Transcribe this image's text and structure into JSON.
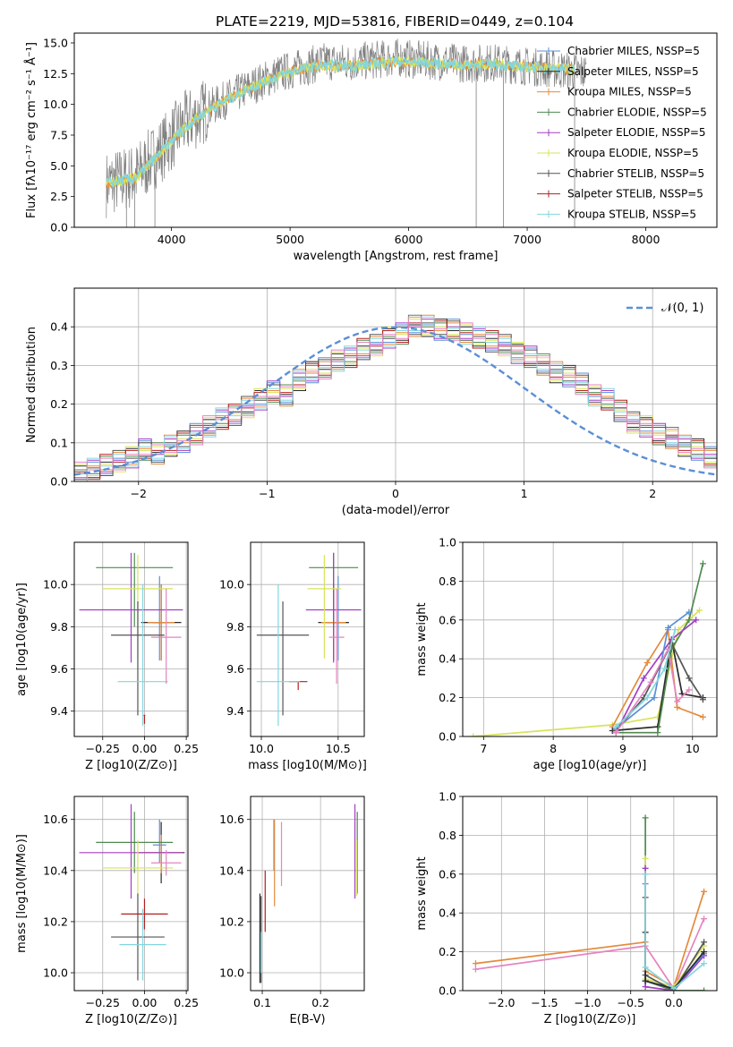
{
  "figure_title": "PLATE=2219, MJD=53816, FIBERID=0449, z=0.104",
  "palette": {
    "Chabrier MILES": "#5b8fd6",
    "Salpeter MILES": "#2a2a2a",
    "Kroupa MILES": "#e38b3c",
    "Chabrier ELODIE": "#4f8a4f",
    "Salpeter ELODIE": "#a33fc4",
    "Kroupa ELODIE": "#d8e35a",
    "Chabrier STELIB": "#555555",
    "Salpeter STELIB": "#b22020",
    "Kroupa STELIB": "#83d6de",
    "extra pink": "#e584c0",
    "normal curve": "#5b8fd6"
  },
  "chart_data": [
    {
      "id": "spectrum",
      "type": "line",
      "title": "PLATE=2219, MJD=53816, FIBERID=0449, z=0.104",
      "xlabel": "wavelength [Angstrom, rest frame]",
      "ylabel": "Flux [fλ10⁻¹⁷ erg cm⁻² s⁻¹ Å⁻¹]",
      "xlim": [
        3180,
        8600
      ],
      "ylim": [
        0,
        15.8
      ],
      "xticks": [
        "4000",
        "5000",
        "6000",
        "7000",
        "8000"
      ],
      "yticks": [
        "0.0",
        "2.5",
        "5.0",
        "7.5",
        "10.0",
        "12.5",
        "15.0"
      ],
      "grid": false,
      "legend_position": "right",
      "legend": [
        "Chabrier MILES, N_SSP=5",
        "Salpeter MILES, N_SSP=5",
        "Kroupa MILES, N_SSP=5",
        "Chabrier ELODIE, N_SSP=5",
        "Salpeter ELODIE, N_SSP=5",
        "Kroupa ELODIE, N_SSP=5",
        "Chabrier STELIB, N_SSP=5",
        "Salpeter STELIB, N_SSP=5",
        "Kroupa STELIB, N_SSP=5"
      ],
      "observed_envelope": {
        "x": [
          3450,
          3700,
          3900,
          4100,
          4300,
          4500,
          4700,
          4900,
          5100,
          5300,
          5500,
          5700,
          5900,
          6100,
          6300,
          6500,
          6700,
          6900,
          7100,
          7300,
          7500
        ],
        "y": [
          3.5,
          4.2,
          6.2,
          8.3,
          9.6,
          10.6,
          11.6,
          12.5,
          13.0,
          13.5,
          13.4,
          13.6,
          13.8,
          13.6,
          13.5,
          13.3,
          13.4,
          13.2,
          13.0,
          12.8,
          12.6
        ]
      },
      "model_fit": {
        "x": [
          3450,
          3700,
          3900,
          4100,
          4300,
          4500,
          4700,
          4900,
          5100,
          5300,
          5500,
          5700,
          5900,
          6100,
          6300,
          6500,
          6700,
          6900,
          7100,
          7300,
          7400
        ],
        "y": [
          3.6,
          4.0,
          6.0,
          8.0,
          9.5,
          10.5,
          11.5,
          12.3,
          12.9,
          13.2,
          13.1,
          13.3,
          13.5,
          13.4,
          13.3,
          13.2,
          13.3,
          13.1,
          13.0,
          12.9,
          12.8
        ]
      }
    },
    {
      "id": "residual_histogram",
      "type": "line",
      "xlabel": "(data-model)/error",
      "ylabel": "Normed distribution",
      "xlim": [
        -2.5,
        2.5
      ],
      "ylim": [
        0,
        0.5
      ],
      "xticks": [
        "−2",
        "−1",
        "0",
        "1",
        "2"
      ],
      "yticks": [
        "0.0",
        "0.1",
        "0.2",
        "0.3",
        "0.4"
      ],
      "grid": true,
      "legend_position": "top-right",
      "legend": [
        "𝒩(0, 1)"
      ],
      "bin_width": 0.1,
      "bin_start": -2.5,
      "hist_reference": [
        0.02,
        0.03,
        0.04,
        0.05,
        0.06,
        0.08,
        0.07,
        0.09,
        0.1,
        0.12,
        0.14,
        0.16,
        0.17,
        0.19,
        0.21,
        0.23,
        0.22,
        0.26,
        0.28,
        0.29,
        0.31,
        0.32,
        0.34,
        0.35,
        0.37,
        0.38,
        0.4,
        0.4,
        0.39,
        0.39,
        0.38,
        0.37,
        0.36,
        0.35,
        0.33,
        0.32,
        0.3,
        0.28,
        0.27,
        0.25,
        0.22,
        0.21,
        0.18,
        0.15,
        0.14,
        0.12,
        0.11,
        0.09,
        0.08,
        0.06,
        0.05
      ],
      "hist_offsets": [
        0.0,
        0.02,
        -0.02,
        0.01,
        -0.01,
        0.025,
        -0.015,
        0.005,
        -0.025,
        0.03
      ],
      "normal_curve": "N(0,1) density"
    },
    {
      "id": "age_vs_Z",
      "type": "scatter",
      "xlabel": "Z [log10(Z/Z⊙)]",
      "ylabel": "age  [log10(age/yr)]",
      "xlim": [
        -0.42,
        0.26
      ],
      "ylim": [
        9.28,
        10.2
      ],
      "xticks": [
        "−0.25",
        "0.00",
        "0.25"
      ],
      "yticks": [
        "9.4",
        "9.6",
        "9.8",
        "10.0"
      ],
      "grid": true,
      "points": [
        {
          "x": 0.09,
          "y": 9.82,
          "xerr": 0.04,
          "yerr": [
            0.18,
            0.22
          ],
          "color": "#5b8fd6"
        },
        {
          "x": 0.1,
          "y": 9.82,
          "xerr": 0.12,
          "yerr": [
            0.18,
            0.18
          ],
          "color": "#2a2a2a"
        },
        {
          "x": 0.1,
          "y": 9.82,
          "xerr": 0.08,
          "yerr": [
            0.18,
            0.18
          ],
          "color": "#e38b3c"
        },
        {
          "x": -0.06,
          "y": 10.08,
          "xerr": 0.23,
          "yerr": [
            0.28,
            0.07
          ],
          "color": "#4f8a4f"
        },
        {
          "x": -0.08,
          "y": 9.88,
          "xerr": 0.31,
          "yerr": [
            0.25,
            0.27
          ],
          "color": "#a33fc4"
        },
        {
          "x": -0.04,
          "y": 9.98,
          "xerr": 0.21,
          "yerr": [
            0.33,
            0.16
          ],
          "color": "#d8e35a"
        },
        {
          "x": -0.04,
          "y": 9.76,
          "xerr": 0.16,
          "yerr": [
            0.38,
            0.16
          ],
          "color": "#555555"
        },
        {
          "x": 0.0,
          "y": 9.38,
          "xerr": 0.005,
          "yerr": [
            0.04,
            0.0
          ],
          "color": "#b22020"
        },
        {
          "x": -0.01,
          "y": 9.54,
          "xerr": 0.15,
          "yerr": [
            0.21,
            0.46
          ],
          "color": "#83d6de"
        },
        {
          "x": 0.13,
          "y": 9.75,
          "xerr": 0.09,
          "yerr": [
            0.22,
            0.23
          ],
          "color": "#e584c0"
        }
      ]
    },
    {
      "id": "age_vs_mass",
      "type": "scatter",
      "xlabel": "mass [log10(M/M⊙)]",
      "ylabel": "",
      "xlim": [
        9.93,
        10.67
      ],
      "ylim": [
        9.28,
        10.2
      ],
      "xticks": [
        "10.0",
        "10.5"
      ],
      "yticks": [
        "9.4",
        "9.6",
        "9.8",
        "10.0"
      ],
      "grid": true,
      "points": [
        {
          "x": 10.5,
          "y": 9.82,
          "xerr": 0.07,
          "yerr": [
            0.18,
            0.22
          ],
          "color": "#5b8fd6"
        },
        {
          "x": 10.47,
          "y": 9.82,
          "xerr": 0.1,
          "yerr": [
            0.18,
            0.18
          ],
          "color": "#2a2a2a"
        },
        {
          "x": 10.47,
          "y": 9.82,
          "xerr": 0.08,
          "yerr": [
            0.18,
            0.18
          ],
          "color": "#e38b3c"
        },
        {
          "x": 10.47,
          "y": 10.08,
          "xerr": 0.16,
          "yerr": [
            0.28,
            0.07
          ],
          "color": "#4f8a4f"
        },
        {
          "x": 10.47,
          "y": 9.88,
          "xerr": 0.18,
          "yerr": [
            0.25,
            0.27
          ],
          "color": "#a33fc4"
        },
        {
          "x": 10.41,
          "y": 9.98,
          "xerr": 0.11,
          "yerr": [
            0.33,
            0.16
          ],
          "color": "#d8e35a"
        },
        {
          "x": 10.14,
          "y": 9.76,
          "xerr": 0.17,
          "yerr": [
            0.38,
            0.16
          ],
          "color": "#555555"
        },
        {
          "x": 10.24,
          "y": 9.54,
          "xerr": 0.06,
          "yerr": [
            0.04,
            0.0
          ],
          "color": "#b22020"
        },
        {
          "x": 10.11,
          "y": 9.54,
          "xerr": 0.14,
          "yerr": [
            0.21,
            0.46
          ],
          "color": "#83d6de"
        },
        {
          "x": 10.49,
          "y": 9.75,
          "xerr": 0.05,
          "yerr": [
            0.22,
            0.23
          ],
          "color": "#e584c0"
        }
      ]
    },
    {
      "id": "mass_weight_vs_age",
      "type": "line",
      "xlabel": "age  [log10(age/yr)]",
      "ylabel": "mass weight",
      "xlim": [
        6.7,
        10.35
      ],
      "ylim": [
        0,
        1.0
      ],
      "xticks": [
        "7",
        "8",
        "9",
        "10"
      ],
      "yticks": [
        "0.0",
        "0.2",
        "0.4",
        "0.6",
        "0.8",
        "1.0"
      ],
      "grid": true,
      "series": [
        {
          "x": [
            6.85,
            8.85,
            9.5,
            9.8,
            10.1
          ],
          "y": [
            0.0,
            0.06,
            0.1,
            0.55,
            0.65
          ],
          "color": "#d8e35a"
        },
        {
          "x": [
            8.85,
            9.35,
            9.65,
            9.78,
            10.15
          ],
          "y": [
            0.05,
            0.38,
            0.55,
            0.15,
            0.1
          ],
          "color": "#e38b3c"
        },
        {
          "x": [
            8.85,
            9.5,
            9.7,
            9.85,
            10.15
          ],
          "y": [
            0.03,
            0.05,
            0.5,
            0.22,
            0.2
          ],
          "color": "#2a2a2a"
        },
        {
          "x": [
            8.9,
            9.5,
            9.7,
            9.95,
            10.15
          ],
          "y": [
            0.02,
            0.02,
            0.45,
            0.6,
            0.89
          ],
          "color": "#4f8a4f"
        },
        {
          "x": [
            8.9,
            9.3,
            9.7,
            10.05
          ],
          "y": [
            0.02,
            0.3,
            0.5,
            0.6
          ],
          "color": "#a33fc4"
        },
        {
          "x": [
            8.9,
            9.45,
            9.65,
            9.95
          ],
          "y": [
            0.04,
            0.2,
            0.56,
            0.64
          ],
          "color": "#5b8fd6"
        },
        {
          "x": [
            8.9,
            9.3,
            9.7,
            9.95,
            10.15
          ],
          "y": [
            0.03,
            0.2,
            0.48,
            0.3,
            0.19
          ],
          "color": "#555555"
        },
        {
          "x": [
            8.9,
            9.4,
            9.65,
            9.78,
            9.95
          ],
          "y": [
            0.02,
            0.28,
            0.45,
            0.18,
            0.24
          ],
          "color": "#e584c0"
        },
        {
          "x": [
            8.9,
            9.35,
            9.6,
            9.75
          ],
          "y": [
            0.05,
            0.2,
            0.35,
            0.55
          ],
          "color": "#83d6de"
        }
      ]
    },
    {
      "id": "mass_vs_Z",
      "type": "scatter",
      "xlabel": "Z [log10(Z/Z⊙)]",
      "ylabel": "mass [log10(M/M⊙)]",
      "xlim": [
        -0.42,
        0.26
      ],
      "ylim": [
        9.93,
        10.69
      ],
      "xticks": [
        "−0.25",
        "0.00",
        "0.25"
      ],
      "yticks": [
        "10.0",
        "10.2",
        "10.4",
        "10.6"
      ],
      "grid": true,
      "points": [
        {
          "x": 0.09,
          "y": 10.5,
          "xerr": 0.04,
          "yerr": [
            0.07,
            0.1
          ],
          "color": "#5b8fd6"
        },
        {
          "x": 0.1,
          "y": 10.47,
          "xerr": 0.14,
          "yerr": [
            0.12,
            0.12
          ],
          "color": "#2a2a2a"
        },
        {
          "x": 0.1,
          "y": 10.47,
          "xerr": 0.13,
          "yerr": [
            0.08,
            0.07
          ],
          "color": "#e38b3c"
        },
        {
          "x": -0.06,
          "y": 10.51,
          "xerr": 0.23,
          "yerr": [
            0.12,
            0.12
          ],
          "color": "#4f8a4f"
        },
        {
          "x": -0.08,
          "y": 10.47,
          "xerr": 0.31,
          "yerr": [
            0.18,
            0.19
          ],
          "color": "#a33fc4"
        },
        {
          "x": -0.04,
          "y": 10.41,
          "xerr": 0.21,
          "yerr": [
            0.11,
            0.11
          ],
          "color": "#d8e35a"
        },
        {
          "x": -0.04,
          "y": 10.14,
          "xerr": 0.16,
          "yerr": [
            0.17,
            0.17
          ],
          "color": "#555555"
        },
        {
          "x": 0.0,
          "y": 10.23,
          "xerr": 0.14,
          "yerr": [
            0.06,
            0.06
          ],
          "color": "#b22020"
        },
        {
          "x": -0.01,
          "y": 10.11,
          "xerr": 0.14,
          "yerr": [
            0.14,
            0.14
          ],
          "color": "#83d6de"
        },
        {
          "x": 0.13,
          "y": 10.43,
          "xerr": 0.09,
          "yerr": [
            0.05,
            0.05
          ],
          "color": "#e584c0"
        }
      ]
    },
    {
      "id": "mass_vs_EBV",
      "type": "scatter",
      "xlabel": "E(B-V)",
      "ylabel": "",
      "xlim": [
        0.08,
        0.275
      ],
      "ylim": [
        9.93,
        10.69
      ],
      "xticks": [
        "0.1",
        "0.2"
      ],
      "yticks": [
        "10.0",
        "10.2",
        "10.4",
        "10.6"
      ],
      "grid": true,
      "points": [
        {
          "x": 0.12,
          "y": 10.5,
          "xerr": 0,
          "yerr": [
            0.1,
            0.1
          ],
          "color": "#5b8fd6"
        },
        {
          "x": 0.096,
          "y": 10.14,
          "xerr": 0,
          "yerr": [
            0.18,
            0.17
          ],
          "color": "#2a2a2a"
        },
        {
          "x": 0.121,
          "y": 10.43,
          "xerr": 0,
          "yerr": [
            0.17,
            0.17
          ],
          "color": "#e38b3c"
        },
        {
          "x": 0.263,
          "y": 10.47,
          "xerr": 0,
          "yerr": [
            0.16,
            0.16
          ],
          "color": "#4f8a4f"
        },
        {
          "x": 0.259,
          "y": 10.47,
          "xerr": 0,
          "yerr": [
            0.18,
            0.19
          ],
          "color": "#a33fc4"
        },
        {
          "x": 0.262,
          "y": 10.41,
          "xerr": 0,
          "yerr": [
            0.11,
            0.11
          ],
          "color": "#d8e35a"
        },
        {
          "x": 0.098,
          "y": 10.13,
          "xerr": 0,
          "yerr": [
            0.17,
            0.17
          ],
          "color": "#555555"
        },
        {
          "x": 0.105,
          "y": 10.28,
          "xerr": 0,
          "yerr": [
            0.12,
            0.12
          ],
          "color": "#b22020"
        },
        {
          "x": 0.098,
          "y": 10.08,
          "xerr": 0,
          "yerr": [
            0.08,
            0.08
          ],
          "color": "#83d6de"
        },
        {
          "x": 0.133,
          "y": 10.47,
          "xerr": 0,
          "yerr": [
            0.13,
            0.12
          ],
          "color": "#e584c0"
        }
      ]
    },
    {
      "id": "mass_weight_vs_Z",
      "type": "line",
      "xlabel": "Z [log10(Z/Z⊙)]",
      "ylabel": "mass weight",
      "xlim": [
        -2.45,
        0.5
      ],
      "ylim": [
        0,
        1.0
      ],
      "xticks": [
        "−2.0",
        "−1.5",
        "−1.0",
        "−0.5",
        "0.0"
      ],
      "yticks": [
        "0.0",
        "0.2",
        "0.4",
        "0.6",
        "0.8",
        "1.0"
      ],
      "grid": true,
      "series": [
        {
          "x": [
            -2.3,
            -0.33,
            -0.33,
            0.0,
            0.35
          ],
          "y": [
            0.14,
            0.25,
            0.1,
            0.02,
            0.51
          ],
          "color": "#e38b3c"
        },
        {
          "x": [
            -2.3,
            -0.33,
            0.0,
            0.35
          ],
          "y": [
            0.11,
            0.23,
            0.01,
            0.37
          ],
          "color": "#e584c0"
        },
        {
          "x": [
            -0.33,
            -0.33,
            0.0,
            0.35
          ],
          "y": [
            0.89,
            0.05,
            0.0,
            0.0
          ],
          "color": "#4f8a4f"
        },
        {
          "x": [
            -0.33,
            -0.33,
            0.0,
            0.35
          ],
          "y": [
            0.68,
            0.06,
            0.02,
            0.23
          ],
          "color": "#d8e35a"
        },
        {
          "x": [
            -0.33,
            -0.33,
            0.0,
            0.35
          ],
          "y": [
            0.63,
            0.02,
            0.0,
            0.18
          ],
          "color": "#a33fc4"
        },
        {
          "x": [
            -0.33,
            -0.33,
            0.0,
            0.35
          ],
          "y": [
            0.55,
            0.05,
            0.01,
            0.19
          ],
          "color": "#5b8fd6"
        },
        {
          "x": [
            -0.33,
            -0.33,
            0.0,
            0.35
          ],
          "y": [
            0.48,
            0.08,
            0.0,
            0.25
          ],
          "color": "#555555"
        },
        {
          "x": [
            -0.33,
            -0.33,
            0.0,
            0.35
          ],
          "y": [
            0.3,
            0.05,
            0.01,
            0.2
          ],
          "color": "#2a2a2a"
        },
        {
          "x": [
            -0.33,
            -0.33,
            0.0,
            0.35
          ],
          "y": [
            0.6,
            0.12,
            0.01,
            0.14
          ],
          "color": "#83d6de"
        }
      ]
    }
  ]
}
